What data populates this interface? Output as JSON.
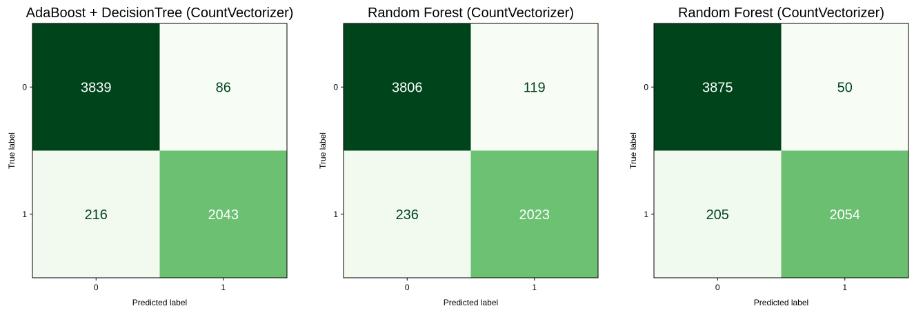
{
  "chart_data": [
    {
      "type": "heatmap",
      "title": "AdaBoost + DecisionTree (CountVectorizer)",
      "xlabel": "Predicted label",
      "ylabel": "True label",
      "x_ticks": [
        "0",
        "1"
      ],
      "y_ticks": [
        "0",
        "1"
      ],
      "values": [
        [
          3839,
          86
        ],
        [
          216,
          2043
        ]
      ],
      "colormap": "Greens",
      "colorbar": false
    },
    {
      "type": "heatmap",
      "title": "Random Forest (CountVectorizer)",
      "xlabel": "Predicted label",
      "ylabel": "True label",
      "x_ticks": [
        "0",
        "1"
      ],
      "y_ticks": [
        "0",
        "1"
      ],
      "values": [
        [
          3806,
          119
        ],
        [
          236,
          2023
        ]
      ],
      "colormap": "Greens",
      "colorbar": false
    },
    {
      "type": "heatmap",
      "title": "Random Forest (CountVectorizer)",
      "xlabel": "Predicted label",
      "ylabel": "True label",
      "x_ticks": [
        "0",
        "1"
      ],
      "y_ticks": [
        "0",
        "1"
      ],
      "values": [
        [
          3875,
          50
        ],
        [
          205,
          2054
        ]
      ],
      "colormap": "Greens",
      "colorbar": false
    }
  ],
  "colors": {
    "greens_low": "#f7fcf5",
    "greens_high": "#00441b",
    "text_light": "#ffffff",
    "text_dark": "#00441b"
  }
}
